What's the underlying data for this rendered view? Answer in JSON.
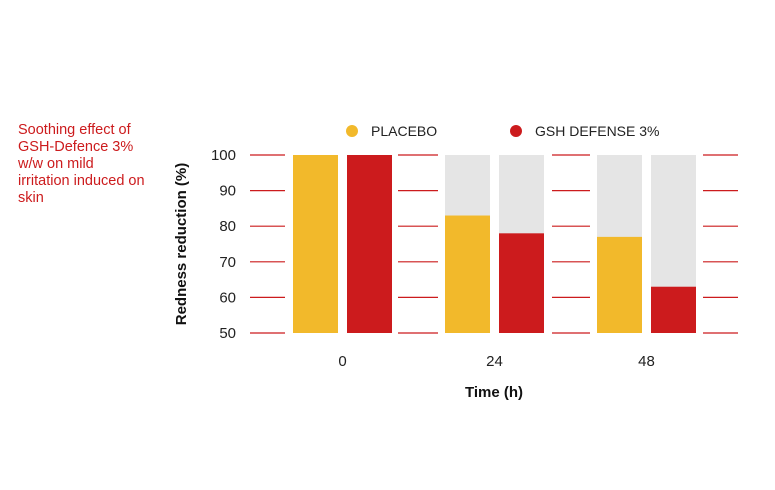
{
  "caption": "Soothing effect of GSH-Defence 3% w/w on mild irritation induced on skin",
  "colors": {
    "placebo": "#f2b92b",
    "gsh": "#cc1b1d",
    "background_bar": "#e5e5e5",
    "grid": "#cc1b1d"
  },
  "chart_data": {
    "type": "bar",
    "title": "",
    "xlabel": "Time (h)",
    "ylabel": "Redness reduction (%)",
    "categories": [
      "0",
      "24",
      "48"
    ],
    "series": [
      {
        "name": "PLACEBO",
        "values": [
          100,
          83,
          77
        ]
      },
      {
        "name": "GSH DEFENSE 3%",
        "values": [
          100,
          78,
          63
        ]
      }
    ],
    "ylim": [
      50,
      100
    ],
    "yticks": [
      "50",
      "60",
      "70",
      "80",
      "90",
      "100"
    ],
    "legend_position": "top"
  }
}
